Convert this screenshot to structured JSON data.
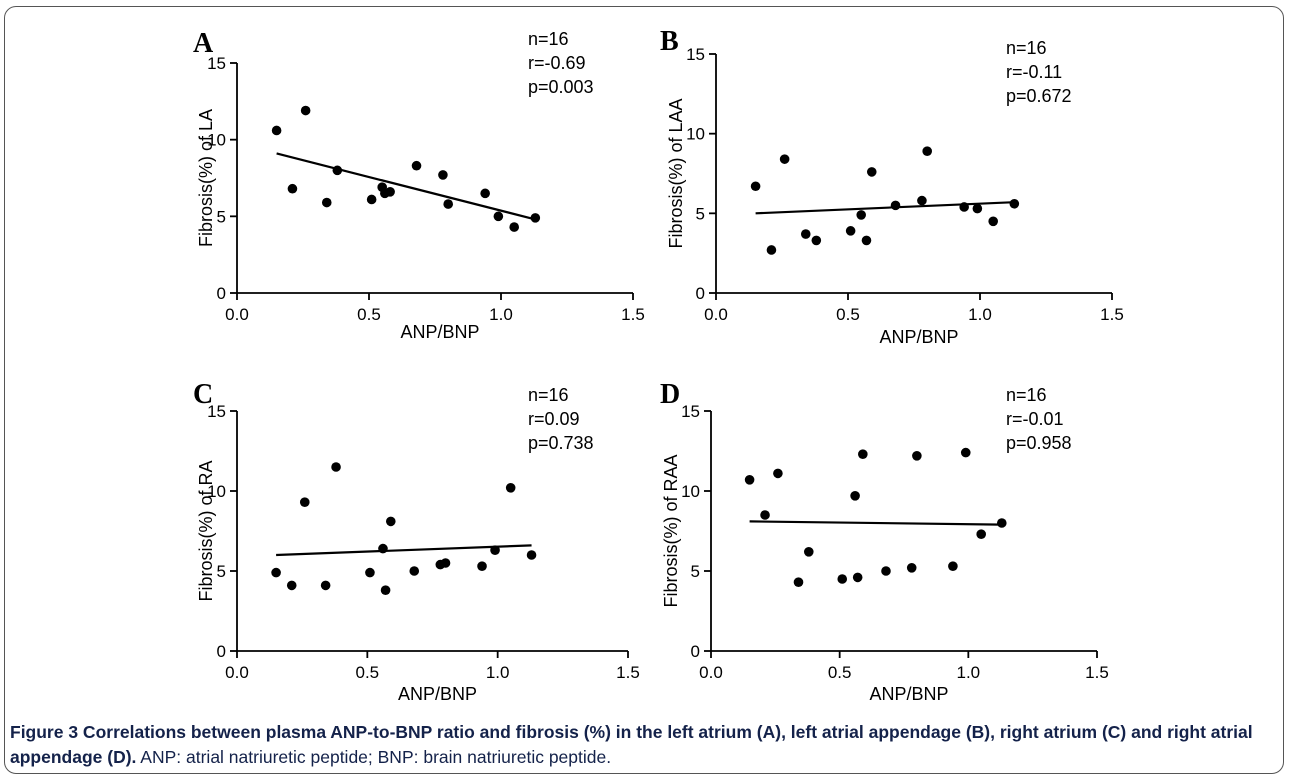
{
  "caption": {
    "label_and_title": "Figure 3 Correlations between plasma ANP-to-BNP ratio and fibrosis (%) in the left atrium (A), left atrial appendage (B), right atrium (C) and right atrial appendage (D).",
    "note": " ANP: atrial natriuretic peptide; BNP: brain natriuretic peptide."
  },
  "chart_data": [
    {
      "panel": "A",
      "type": "scatter",
      "xlabel": "ANP/BNP",
      "ylabel": "Fibrosis(%) of LA",
      "xlim": [
        0,
        1.5
      ],
      "ylim": [
        0,
        15
      ],
      "xticks": [
        "0.0",
        "0.5",
        "1.0",
        "1.5"
      ],
      "yticks": [
        "0",
        "5",
        "10",
        "15"
      ],
      "stats": [
        "n=16",
        "r=-0.69",
        "p=0.003"
      ],
      "fit_line": {
        "x": [
          0.15,
          1.13
        ],
        "y": [
          9.1,
          4.8
        ]
      },
      "points": [
        [
          0.15,
          10.6
        ],
        [
          0.21,
          6.8
        ],
        [
          0.26,
          11.9
        ],
        [
          0.34,
          5.9
        ],
        [
          0.38,
          8.0
        ],
        [
          0.51,
          6.1
        ],
        [
          0.55,
          6.9
        ],
        [
          0.56,
          6.5
        ],
        [
          0.58,
          6.6
        ],
        [
          0.68,
          8.3
        ],
        [
          0.78,
          7.7
        ],
        [
          0.8,
          5.8
        ],
        [
          0.94,
          6.5
        ],
        [
          0.99,
          5.0
        ],
        [
          1.05,
          4.3
        ],
        [
          1.13,
          4.9
        ]
      ]
    },
    {
      "panel": "B",
      "type": "scatter",
      "xlabel": "ANP/BNP",
      "ylabel": "Fibrosis(%) of LAA",
      "xlim": [
        0,
        1.5
      ],
      "ylim": [
        0,
        15
      ],
      "xticks": [
        "0.0",
        "0.5",
        "1.0",
        "1.5"
      ],
      "yticks": [
        "0",
        "5",
        "10",
        "15"
      ],
      "stats": [
        "n=16",
        "r=-0.11",
        "p=0.672"
      ],
      "fit_line": {
        "x": [
          0.15,
          1.13
        ],
        "y": [
          5.0,
          5.7
        ]
      },
      "points": [
        [
          0.15,
          6.7
        ],
        [
          0.21,
          2.7
        ],
        [
          0.26,
          8.4
        ],
        [
          0.34,
          3.7
        ],
        [
          0.38,
          3.3
        ],
        [
          0.51,
          3.9
        ],
        [
          0.55,
          4.9
        ],
        [
          0.57,
          3.3
        ],
        [
          0.59,
          7.6
        ],
        [
          0.68,
          5.5
        ],
        [
          0.78,
          5.8
        ],
        [
          0.8,
          8.9
        ],
        [
          0.94,
          5.4
        ],
        [
          0.99,
          5.3
        ],
        [
          1.05,
          4.5
        ],
        [
          1.13,
          5.6
        ]
      ]
    },
    {
      "panel": "C",
      "type": "scatter",
      "xlabel": "ANP/BNP",
      "ylabel": "Fibrosis(%) of RA",
      "xlim": [
        0,
        1.5
      ],
      "ylim": [
        0,
        15
      ],
      "xticks": [
        "0.0",
        "0.5",
        "1.0",
        "1.5"
      ],
      "yticks": [
        "0",
        "5",
        "10",
        "15"
      ],
      "stats": [
        "n=16",
        "r=0.09",
        "p=0.738"
      ],
      "fit_line": {
        "x": [
          0.15,
          1.13
        ],
        "y": [
          6.0,
          6.6
        ]
      },
      "points": [
        [
          0.15,
          4.9
        ],
        [
          0.21,
          4.1
        ],
        [
          0.26,
          9.3
        ],
        [
          0.34,
          4.1
        ],
        [
          0.38,
          11.5
        ],
        [
          0.51,
          4.9
        ],
        [
          0.56,
          6.4
        ],
        [
          0.57,
          3.8
        ],
        [
          0.59,
          8.1
        ],
        [
          0.68,
          5.0
        ],
        [
          0.78,
          5.4
        ],
        [
          0.8,
          5.5
        ],
        [
          0.94,
          5.3
        ],
        [
          0.99,
          6.3
        ],
        [
          1.05,
          10.2
        ],
        [
          1.13,
          6.0
        ]
      ]
    },
    {
      "panel": "D",
      "type": "scatter",
      "xlabel": "ANP/BNP",
      "ylabel": "Fibrosis(%) of RAA",
      "xlim": [
        0,
        1.5
      ],
      "ylim": [
        0,
        15
      ],
      "xticks": [
        "0.0",
        "0.5",
        "1.0",
        "1.5"
      ],
      "yticks": [
        "0",
        "5",
        "10",
        "15"
      ],
      "stats": [
        "n=16",
        "r=-0.01",
        "p=0.958"
      ],
      "fit_line": {
        "x": [
          0.15,
          1.13
        ],
        "y": [
          8.1,
          7.9
        ]
      },
      "points": [
        [
          0.15,
          10.7
        ],
        [
          0.21,
          8.5
        ],
        [
          0.26,
          11.1
        ],
        [
          0.34,
          4.3
        ],
        [
          0.38,
          6.2
        ],
        [
          0.51,
          4.5
        ],
        [
          0.56,
          9.7
        ],
        [
          0.57,
          4.6
        ],
        [
          0.59,
          12.3
        ],
        [
          0.68,
          5.0
        ],
        [
          0.78,
          5.2
        ],
        [
          0.8,
          12.2
        ],
        [
          0.94,
          5.3
        ],
        [
          0.99,
          12.4
        ],
        [
          1.05,
          7.3
        ],
        [
          1.13,
          8.0
        ]
      ]
    }
  ]
}
